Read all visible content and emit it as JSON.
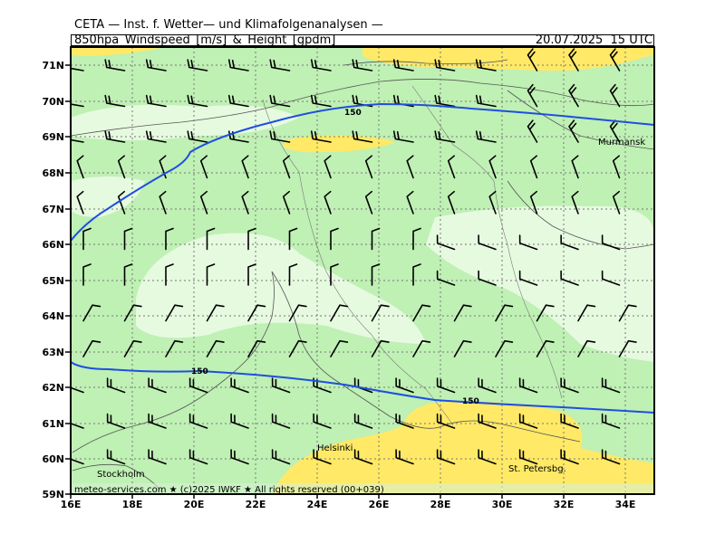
{
  "header": {
    "line1": "CETA — Inst. f. Wetter— und Klimafolgenanalysen —",
    "line2": "850hpa_Windspeed_[m/s]_&_Height_[gpdm]",
    "datetime": "20.07.2025  15 UTC"
  },
  "axes": {
    "lat_labels": [
      "71N",
      "70N",
      "69N",
      "68N",
      "67N",
      "66N",
      "65N",
      "64N",
      "63N",
      "62N",
      "61N",
      "60N",
      "59N"
    ],
    "lon_labels": [
      "16E",
      "18E",
      "20E",
      "22E",
      "24E",
      "26E",
      "28E",
      "30E",
      "32E",
      "34E"
    ]
  },
  "cities": {
    "murmansk": "Murmansk",
    "stockholm": "Stockholm",
    "helsinki": "Helsinki",
    "st_petersburg": "St. Petersbg."
  },
  "contours": {
    "north_label": "150",
    "south_label_1": "150",
    "south_label_2": "150"
  },
  "footer": "meteo-services.com  ★  (c)2025 IWKF  ★  All rights reserved (00+039)",
  "colors": {
    "light_green": "#bff0b4",
    "pale_green": "#e6fae0",
    "yellow": "#ffe966",
    "contour": "#1f4fe0"
  }
}
